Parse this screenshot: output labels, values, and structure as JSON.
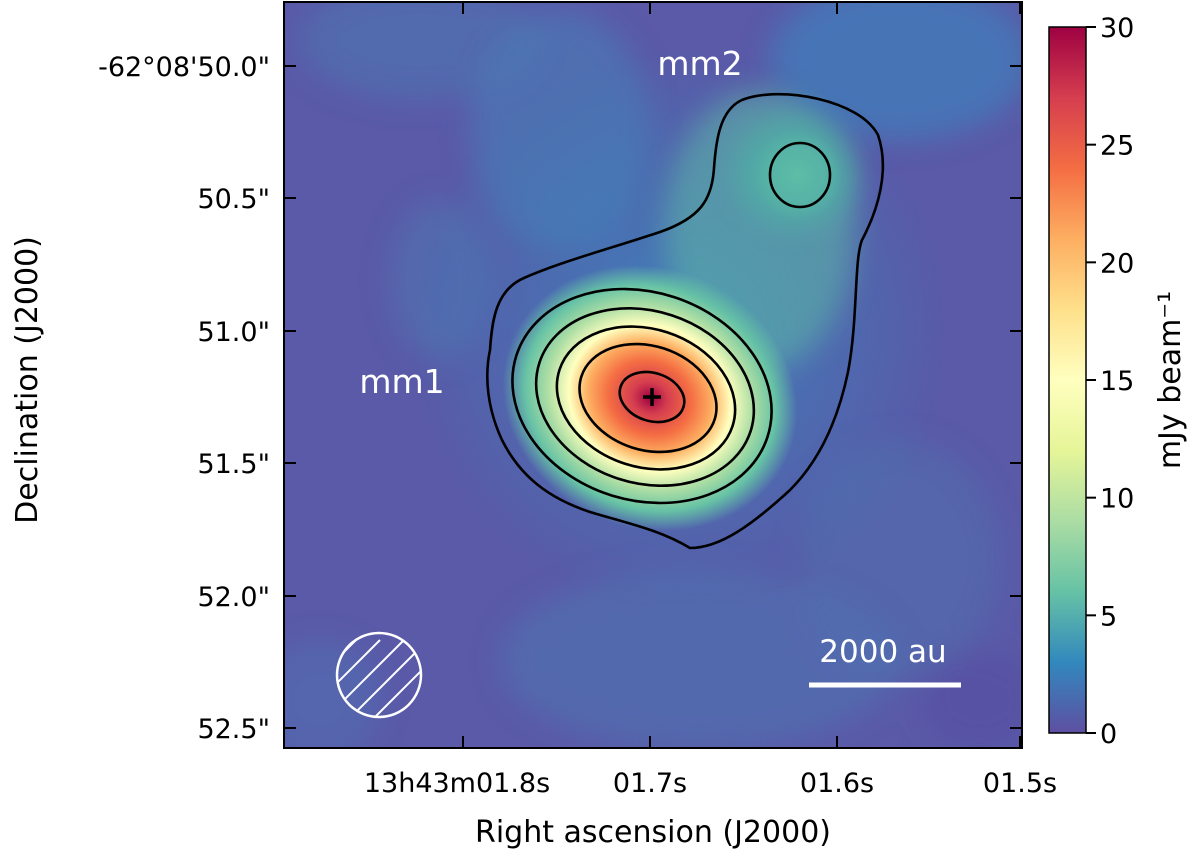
{
  "chart_data": {
    "type": "heatmap",
    "title": "",
    "xlabel": "Right ascension (J2000)",
    "ylabel": "Declination (J2000)",
    "x_ticks": [
      "13h43m01.8s",
      "01.7s",
      "01.6s",
      "01.5s"
    ],
    "y_ticks": [
      "-62°08'50.0\"",
      "50.5\"",
      "51.0\"",
      "51.5\"",
      "52.0\"",
      "52.5\""
    ],
    "colorbar": {
      "label": "mJy beam⁻¹",
      "ticks": [
        0,
        5,
        10,
        15,
        20,
        25,
        30
      ],
      "range": [
        0,
        30
      ],
      "colormap": "Spectral_r",
      "colors": [
        "#5e4fa2",
        "#3288bd",
        "#66c2a5",
        "#abdda4",
        "#e6f598",
        "#ffffbf",
        "#fee08b",
        "#fdae61",
        "#f46d43",
        "#d53e4f",
        "#9e0142"
      ]
    },
    "sources": [
      {
        "label": "mm1",
        "peak_mJy_per_beam": 29,
        "ra": "13h43m01.70s",
        "dec": "-62°08'51.25\""
      },
      {
        "label": "mm2",
        "peak_mJy_per_beam": 6,
        "ra": "13h43m01.62s",
        "dec": "-62°08'50.40\""
      }
    ],
    "contours": {
      "count": 7,
      "color": "#000000"
    },
    "scalebar": {
      "label": "2000 au"
    },
    "beam": {
      "style": "hatched circle"
    },
    "peak_marker": "plus"
  }
}
